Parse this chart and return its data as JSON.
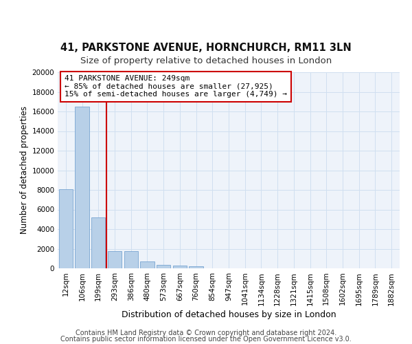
{
  "title": "41, PARKSTONE AVENUE, HORNCHURCH, RM11 3LN",
  "subtitle": "Size of property relative to detached houses in London",
  "xlabel": "Distribution of detached houses by size in London",
  "ylabel": "Number of detached properties",
  "bar_values": [
    8100,
    16500,
    5200,
    1750,
    1750,
    700,
    350,
    270,
    230,
    0,
    0,
    0,
    0,
    0,
    0,
    0,
    0,
    0,
    0,
    0,
    0
  ],
  "categories": [
    "12sqm",
    "106sqm",
    "199sqm",
    "293sqm",
    "386sqm",
    "480sqm",
    "573sqm",
    "667sqm",
    "760sqm",
    "854sqm",
    "947sqm",
    "1041sqm",
    "1134sqm",
    "1228sqm",
    "1321sqm",
    "1415sqm",
    "1508sqm",
    "1602sqm",
    "1695sqm",
    "1789sqm",
    "1882sqm"
  ],
  "bar_color": "#b8d0e8",
  "bar_edge_color": "#6699cc",
  "grid_color": "#d0dff0",
  "background_color": "#eef3fa",
  "vline_color": "#cc0000",
  "annotation_text": "41 PARKSTONE AVENUE: 249sqm\n← 85% of detached houses are smaller (27,925)\n15% of semi-detached houses are larger (4,749) →",
  "annotation_box_color": "#ffffff",
  "annotation_box_edge": "#cc0000",
  "ylim": [
    0,
    20000
  ],
  "yticks": [
    0,
    2000,
    4000,
    6000,
    8000,
    10000,
    12000,
    14000,
    16000,
    18000,
    20000
  ],
  "footer_line1": "Contains HM Land Registry data © Crown copyright and database right 2024.",
  "footer_line2": "Contains public sector information licensed under the Open Government Licence v3.0.",
  "title_fontsize": 10.5,
  "subtitle_fontsize": 9.5,
  "xlabel_fontsize": 9,
  "ylabel_fontsize": 8.5,
  "tick_fontsize": 7.5,
  "footer_fontsize": 7,
  "annot_fontsize": 8
}
